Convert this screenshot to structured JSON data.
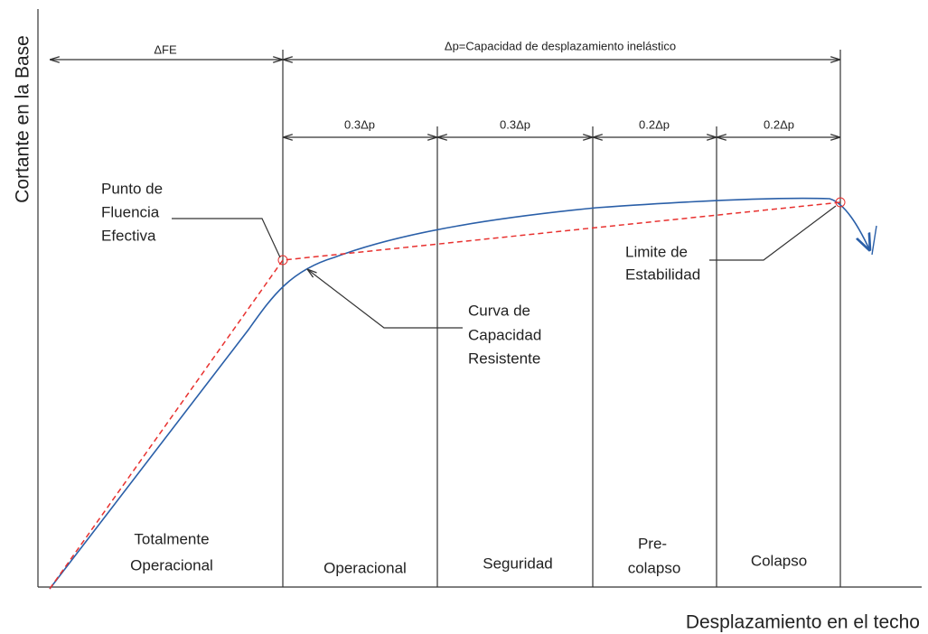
{
  "axes": {
    "y_label": "Cortante en la Base",
    "x_label": "Desplazamiento en el techo"
  },
  "dimensions": {
    "elastic": "ΔFE",
    "inelastic": "Δp=Capacidad de desplazamiento inelástico",
    "segments": [
      "0.3Δp",
      "0.3Δp",
      "0.2Δp",
      "0.2Δp"
    ]
  },
  "annotations": {
    "yield_point": [
      "Punto de",
      "Fluencia",
      "Efectiva"
    ],
    "stability_limit": [
      "Limite de",
      "Estabilidad"
    ],
    "capacity_curve": [
      "Curva de",
      "Capacidad",
      "Resistente"
    ]
  },
  "zones": [
    [
      "Totalmente",
      "Operacional"
    ],
    [
      "Operacional"
    ],
    [
      "Seguridad"
    ],
    [
      "Pre-",
      "colapso"
    ],
    [
      "Colapso"
    ]
  ]
}
